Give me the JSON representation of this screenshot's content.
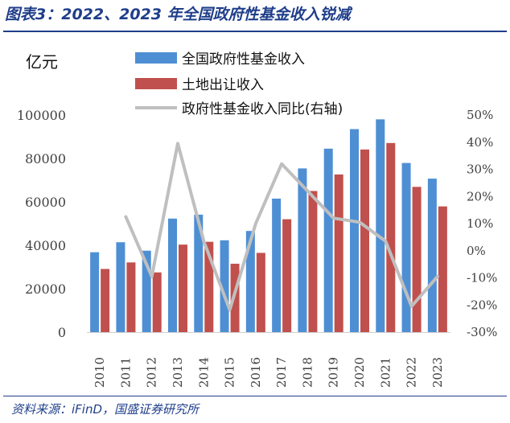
{
  "figure_title": "图表3：2022、2023 年全国政府性基金收入锐减",
  "source": "资料来源：iFinD，国盛证券研究所",
  "colors": {
    "title": "#1f3e8a",
    "series_1": "#4e8fd4",
    "series_2": "#c0504d",
    "series_3": "#bfbfbf",
    "axis_text": "#404040"
  },
  "chart_data": {
    "type": "bar",
    "title": "",
    "ylabel": "亿元",
    "xlabel": "",
    "categories": [
      "2010",
      "2011",
      "2012",
      "2013",
      "2014",
      "2015",
      "2016",
      "2017",
      "2018",
      "2019",
      "2020",
      "2021",
      "2022",
      "2023"
    ],
    "ylim": [
      0,
      100000
    ],
    "y_ticks": [
      "0",
      "20000",
      "40000",
      "60000",
      "80000",
      "100000"
    ],
    "y2lim": [
      -30,
      50
    ],
    "y2_ticks": [
      "-30%",
      "-20%",
      "-10%",
      "0%",
      "10%",
      "20%",
      "30%",
      "40%",
      "50%"
    ],
    "series": [
      {
        "name": "全国政府性基金收入",
        "kind": "bar",
        "axis": "left",
        "values": [
          36800,
          41400,
          37500,
          52300,
          54100,
          42300,
          46600,
          61500,
          75400,
          84500,
          93500,
          98000,
          77900,
          70700
        ]
      },
      {
        "name": "土地出让收入",
        "kind": "bar",
        "axis": "left",
        "values": [
          29100,
          32100,
          27500,
          40300,
          41600,
          31500,
          36500,
          52000,
          65000,
          72600,
          84100,
          87100,
          66900,
          57900
        ]
      },
      {
        "name": "政府性基金收入同比(右轴)",
        "kind": "line",
        "axis": "right",
        "values": [
          null,
          12.5,
          -9.5,
          39.5,
          3.5,
          -21.8,
          10.0,
          32.0,
          22.0,
          12.0,
          10.5,
          3.5,
          -20.5,
          -9.5
        ]
      }
    ],
    "legend_position": "top"
  }
}
